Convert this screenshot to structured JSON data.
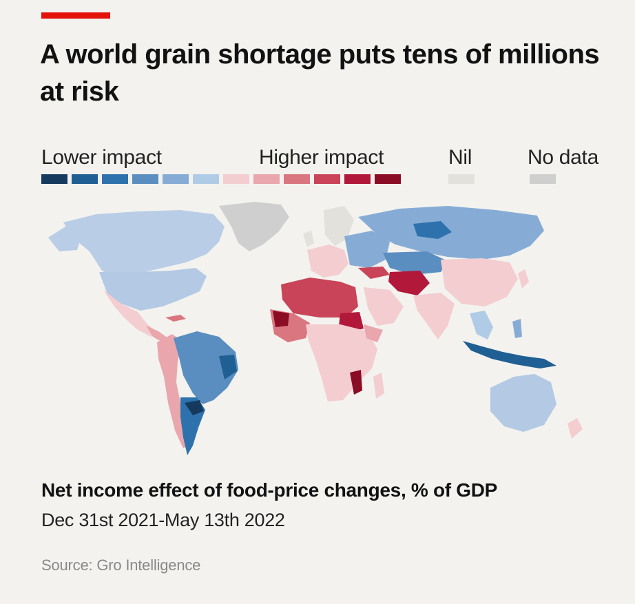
{
  "header": {
    "accent_color": "#e3120b",
    "title": "A world grain shortage puts tens of millions at risk"
  },
  "legend": {
    "lower_label": "Lower impact",
    "higher_label": "Higher impact",
    "nil_label": "Nil",
    "no_data_label": "No data",
    "scale_colors": [
      "#163a5e",
      "#1f5f93",
      "#2e72ad",
      "#5a8ec0",
      "#86acd6",
      "#b0cbe6",
      "#f3cdd0",
      "#e9a6ad",
      "#d97680",
      "#c94458",
      "#b2183a",
      "#8a0d25"
    ],
    "nil_color": "#e2e1dc",
    "no_data_color": "#cfcfcf"
  },
  "map": {
    "type": "choropleth",
    "region": "world"
  },
  "footer": {
    "subtitle": "Net income effect of food-price changes, % of GDP",
    "date_range": "Dec 31st 2021-May 13th 2022",
    "source": "Source: Gro Intelligence"
  }
}
